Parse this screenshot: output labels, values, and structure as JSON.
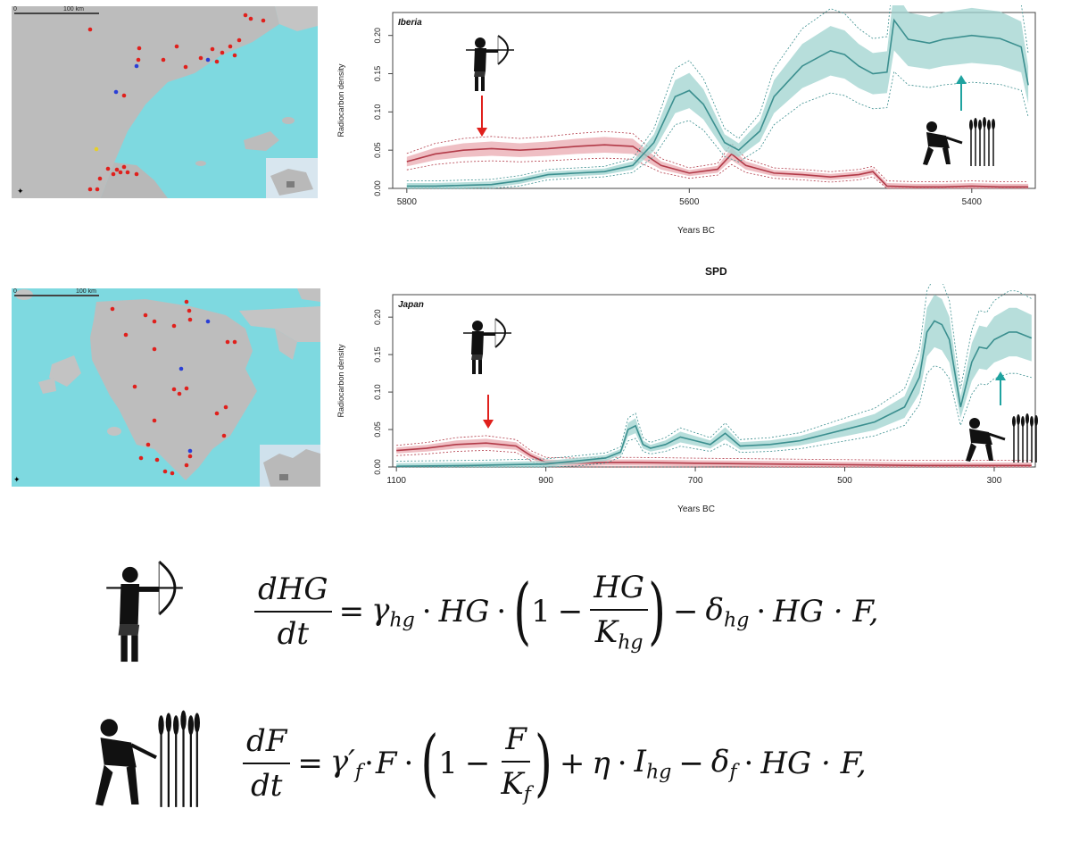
{
  "maps": [
    {
      "name": "iberia-map",
      "scale_label": "100 km",
      "zero_label": "0"
    },
    {
      "name": "japan-map",
      "scale_label": "100 km",
      "zero_label": "0"
    }
  ],
  "colors": {
    "hg_line": "#b23a48",
    "hg_band": "#e9a9b0",
    "farmer_line": "#3b8f8f",
    "farmer_band": "#9fd3cf",
    "sea": "#7ed9e0",
    "land": "#bdbdbd",
    "site_red": "#e0201c",
    "site_blue": "#2a3fd6",
    "site_yellow": "#e6cf2a",
    "arrow_red": "#e0201c",
    "arrow_teal": "#1fa3a0"
  },
  "icons": {
    "hunter": "archer-icon",
    "farmer": "harvester-icon"
  },
  "chart_data": [
    {
      "type": "line",
      "title": "",
      "panel_label": "Iberia",
      "xlabel": "Years BC",
      "ylabel": "Radiocarbon density",
      "xlim": [
        5810,
        5355
      ],
      "ylim": [
        0,
        0.23
      ],
      "xticks": [
        5800,
        5600,
        5400
      ],
      "yticks": [
        "0.00",
        "0.05",
        "0.10",
        "0.15",
        "0.20"
      ],
      "series": [
        {
          "role": "hunter-gatherers",
          "x": [
            5800,
            5780,
            5760,
            5740,
            5720,
            5700,
            5680,
            5660,
            5640,
            5620,
            5600,
            5580,
            5570,
            5560,
            5540,
            5520,
            5500,
            5480,
            5470,
            5460,
            5440,
            5420,
            5400,
            5380,
            5360
          ],
          "values": [
            0.035,
            0.045,
            0.05,
            0.052,
            0.05,
            0.052,
            0.055,
            0.057,
            0.055,
            0.03,
            0.02,
            0.025,
            0.045,
            0.03,
            0.02,
            0.018,
            0.015,
            0.018,
            0.022,
            0.003,
            0.002,
            0.002,
            0.003,
            0.002,
            0.002
          ]
        },
        {
          "role": "farmers",
          "x": [
            5800,
            5780,
            5760,
            5740,
            5720,
            5700,
            5680,
            5660,
            5640,
            5625,
            5610,
            5600,
            5590,
            5575,
            5565,
            5550,
            5540,
            5520,
            5500,
            5490,
            5480,
            5470,
            5460,
            5455,
            5445,
            5430,
            5420,
            5400,
            5390,
            5380,
            5365,
            5360
          ],
          "values": [
            0.003,
            0.003,
            0.004,
            0.005,
            0.01,
            0.018,
            0.02,
            0.022,
            0.03,
            0.06,
            0.12,
            0.128,
            0.11,
            0.06,
            0.05,
            0.075,
            0.12,
            0.16,
            0.18,
            0.175,
            0.16,
            0.15,
            0.152,
            0.22,
            0.195,
            0.19,
            0.195,
            0.2,
            0.198,
            0.196,
            0.185,
            0.135
          ]
        }
      ]
    },
    {
      "type": "line",
      "title": "SPD",
      "panel_label": "Japan",
      "xlabel": "Years BC",
      "ylabel": "Radiocarbon density",
      "xlim": [
        1105,
        245
      ],
      "ylim": [
        0,
        0.23
      ],
      "xticks": [
        1100,
        900,
        700,
        500,
        300
      ],
      "yticks": [
        "0.00",
        "0.05",
        "0.10",
        "0.15",
        "0.20"
      ],
      "series": [
        {
          "role": "hunter-gatherers",
          "x": [
            1100,
            1060,
            1020,
            980,
            960,
            940,
            920,
            900,
            860,
            820,
            780,
            700,
            600,
            500,
            400,
            300,
            250
          ],
          "values": [
            0.022,
            0.025,
            0.03,
            0.032,
            0.03,
            0.028,
            0.015,
            0.006,
            0.005,
            0.006,
            0.006,
            0.005,
            0.004,
            0.003,
            0.002,
            0.002,
            0.002
          ]
        },
        {
          "role": "farmers",
          "x": [
            1100,
            1000,
            950,
            900,
            860,
            820,
            800,
            790,
            780,
            770,
            760,
            740,
            720,
            700,
            680,
            660,
            640,
            600,
            560,
            540,
            520,
            500,
            460,
            420,
            400,
            390,
            380,
            370,
            360,
            345,
            330,
            320,
            310,
            300,
            290,
            280,
            270,
            250
          ],
          "values": [
            0.001,
            0.002,
            0.003,
            0.004,
            0.008,
            0.012,
            0.02,
            0.05,
            0.055,
            0.03,
            0.025,
            0.03,
            0.04,
            0.035,
            0.03,
            0.045,
            0.028,
            0.03,
            0.035,
            0.04,
            0.045,
            0.05,
            0.06,
            0.08,
            0.12,
            0.18,
            0.195,
            0.19,
            0.17,
            0.08,
            0.14,
            0.16,
            0.158,
            0.17,
            0.175,
            0.18,
            0.18,
            0.172
          ]
        }
      ]
    }
  ],
  "equations": {
    "hg": {
      "num_left": "dHG",
      "den_left": "dt",
      "equals": "=",
      "rate": "γ",
      "rate_sub": "hg",
      "dot": "·",
      "var": "HG",
      "one": "1",
      "minus": "−",
      "inner_num": "HG",
      "inner_den": "K",
      "inner_den_sub": "hg",
      "loss": "δ",
      "loss_sub": "hg",
      "tail": "HG · F,"
    },
    "f": {
      "num_left": "dF",
      "den_left": "dt",
      "equals": "=",
      "rate": "γ′",
      "rate_sub": "f",
      "dot": "·",
      "var": "F",
      "one": "1",
      "minus": "−",
      "inner_num": "F",
      "inner_den": "K",
      "inner_den_sub": "f",
      "plus": "+",
      "eta": "η",
      "imm": "I",
      "imm_sub": "hg",
      "loss": "δ",
      "loss_sub": "f",
      "tail": "HG · F,"
    }
  }
}
